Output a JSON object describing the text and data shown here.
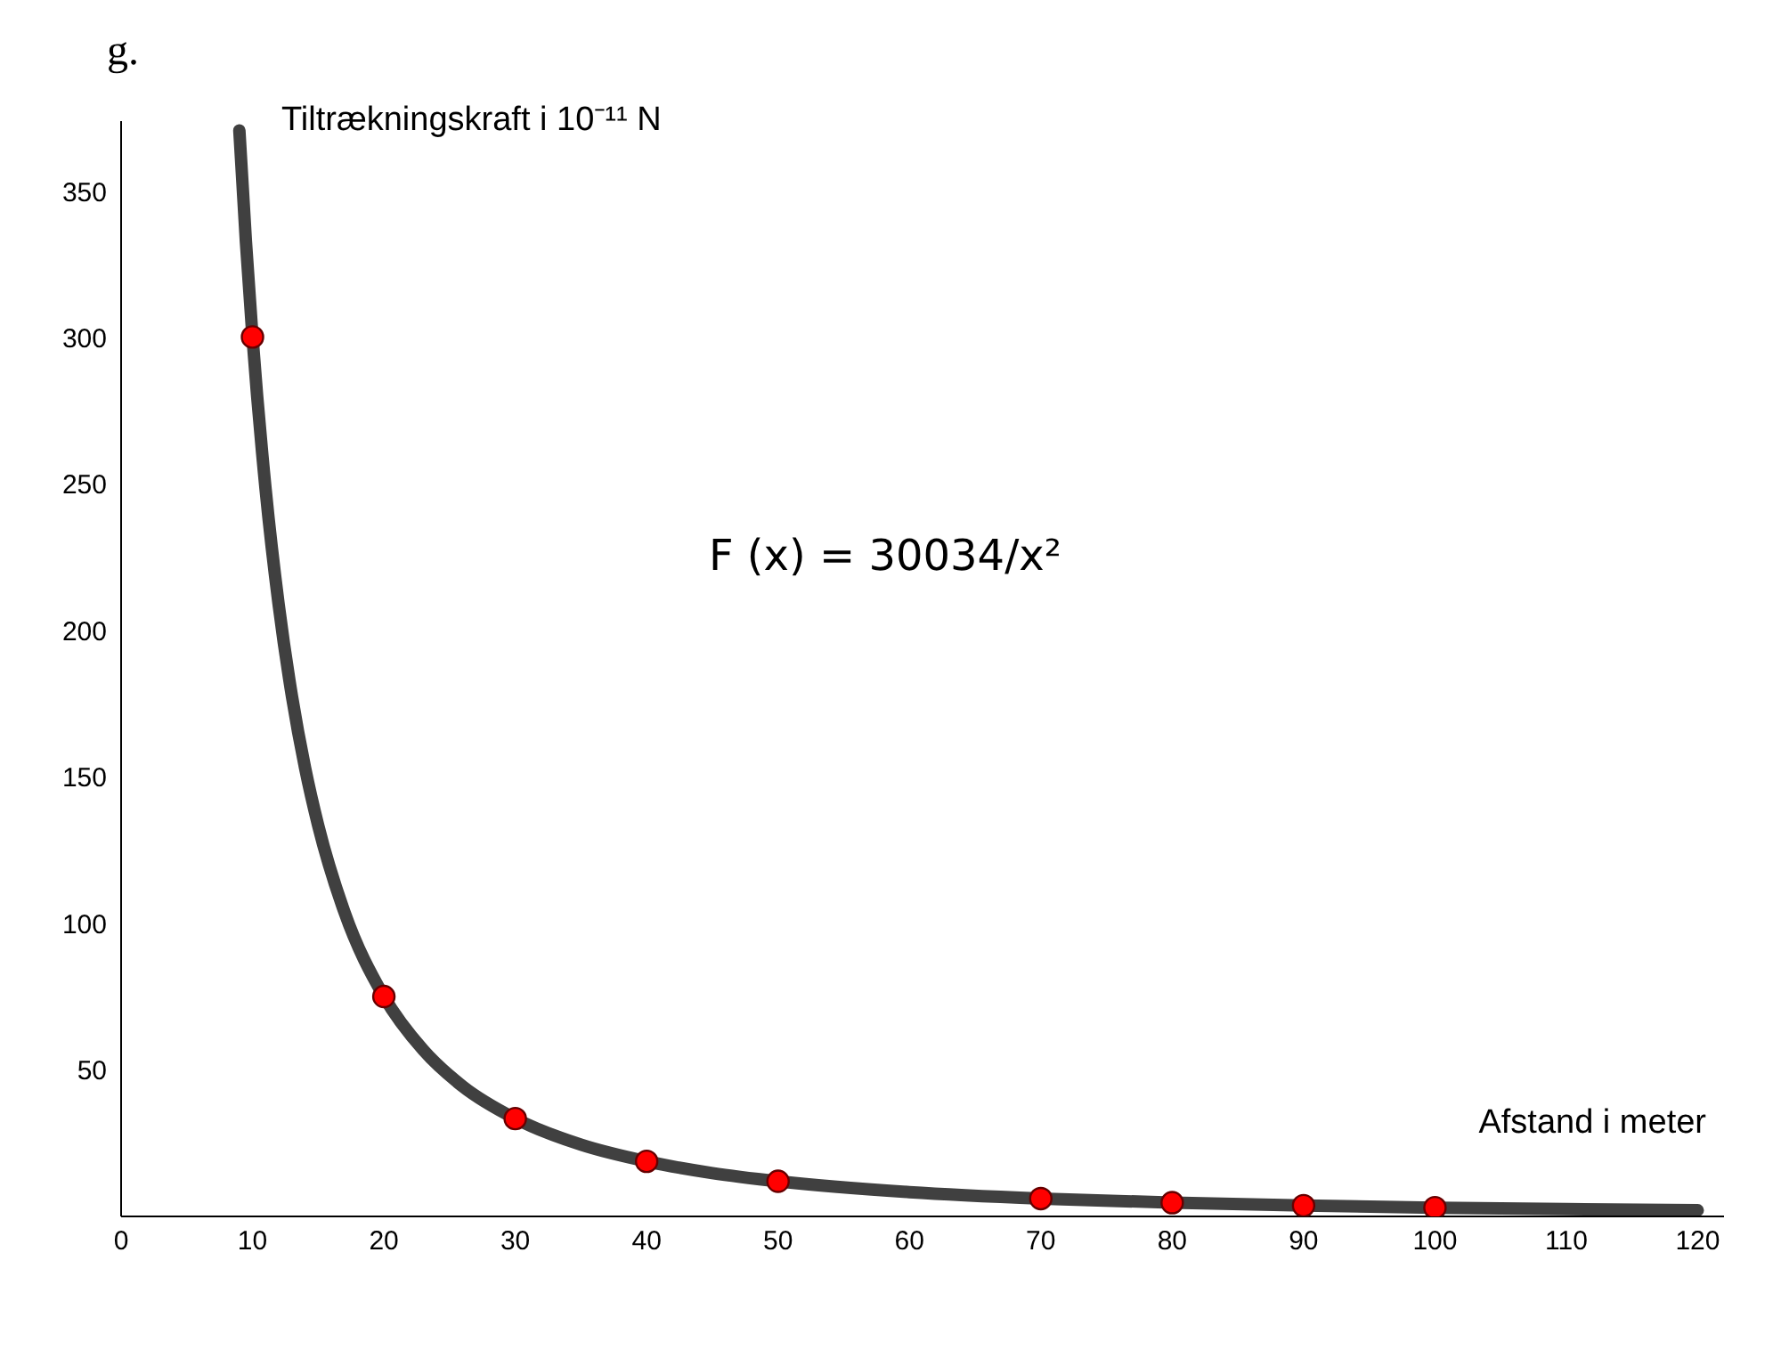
{
  "chart_data": {
    "type": "line",
    "xlabel": "Afstand i meter",
    "ylabel": "Tiltrækningskraft i 10⁻¹¹ N",
    "annotations": [
      "g.",
      "F (x) = 30034/x²"
    ],
    "xlim": [
      0,
      122
    ],
    "xticks": [
      0,
      10,
      20,
      30,
      40,
      50,
      60,
      70,
      80,
      90,
      100,
      110,
      120
    ],
    "ylim": [
      0,
      374
    ],
    "yticks": [
      50,
      100,
      150,
      200,
      250,
      300,
      350
    ],
    "grid": false,
    "series": [
      {
        "color": "#404040",
        "marker": "none",
        "x": [
          9,
          9.5,
          10,
          11,
          12,
          13,
          14,
          15,
          17,
          20,
          23,
          26,
          30,
          35,
          40,
          45,
          50,
          60,
          70,
          80,
          90,
          100,
          110,
          120
        ],
        "values": [
          370.8,
          332.8,
          300.3,
          248.2,
          208.6,
          177.7,
          153.2,
          133.5,
          103.9,
          75.1,
          56.8,
          44.4,
          33.4,
          24.5,
          18.8,
          14.8,
          12.0,
          8.3,
          6.1,
          4.7,
          3.7,
          3.0,
          2.5,
          2.1
        ]
      },
      {
        "type": "scatter",
        "color": "#ff0000",
        "marker": "circle",
        "x": [
          10,
          20,
          30,
          40,
          50,
          70,
          80,
          90,
          100
        ],
        "values": [
          300.3,
          75.1,
          33.4,
          18.8,
          12.0,
          6.1,
          4.7,
          3.7,
          3.0
        ]
      }
    ]
  }
}
